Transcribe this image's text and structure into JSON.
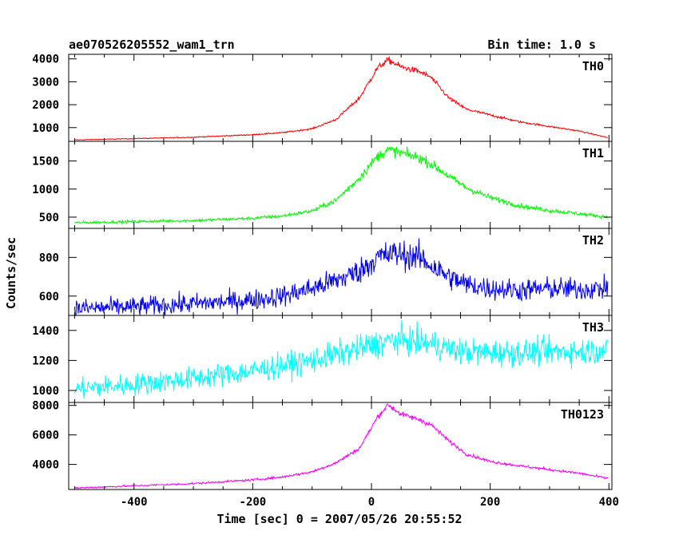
{
  "header": {
    "title": "ae070526205552_wam1_trn",
    "bin_time": "Bin time: 1.0 s"
  },
  "chart_data": {
    "type": "line",
    "xlabel": "Time [sec] 0 = 2007/05/26 20:55:52",
    "ylabel": "Counts/sec",
    "xlim": [
      -510,
      405
    ],
    "xticks": [
      -400,
      -200,
      0,
      200,
      400
    ],
    "panels": [
      {
        "name": "TH0",
        "color": "#ff0000",
        "ylim": [
          400,
          4200
        ],
        "yticks": [
          1000,
          2000,
          3000,
          4000
        ],
        "noise": 0.018,
        "shape": [
          [
            -500,
            460
          ],
          [
            -400,
            520
          ],
          [
            -300,
            580
          ],
          [
            -200,
            690
          ],
          [
            -150,
            780
          ],
          [
            -100,
            950
          ],
          [
            -60,
            1350
          ],
          [
            -20,
            2300
          ],
          [
            10,
            3600
          ],
          [
            28,
            3950
          ],
          [
            50,
            3650
          ],
          [
            80,
            3450
          ],
          [
            100,
            3200
          ],
          [
            130,
            2300
          ],
          [
            160,
            1800
          ],
          [
            200,
            1550
          ],
          [
            250,
            1250
          ],
          [
            300,
            1050
          ],
          [
            350,
            850
          ],
          [
            398,
            560
          ]
        ]
      },
      {
        "name": "TH1",
        "color": "#00ff00",
        "ylim": [
          300,
          1850
        ],
        "yticks": [
          500,
          1000,
          1500
        ],
        "noise": 0.03,
        "shape": [
          [
            -500,
            400
          ],
          [
            -400,
            420
          ],
          [
            -300,
            440
          ],
          [
            -200,
            480
          ],
          [
            -150,
            520
          ],
          [
            -100,
            610
          ],
          [
            -60,
            800
          ],
          [
            -20,
            1200
          ],
          [
            10,
            1580
          ],
          [
            28,
            1700
          ],
          [
            50,
            1640
          ],
          [
            80,
            1560
          ],
          [
            100,
            1450
          ],
          [
            130,
            1230
          ],
          [
            160,
            1020
          ],
          [
            200,
            850
          ],
          [
            250,
            700
          ],
          [
            300,
            620
          ],
          [
            350,
            560
          ],
          [
            398,
            500
          ]
        ]
      },
      {
        "name": "TH2",
        "color": "#0000ff",
        "ylim": [
          500,
          950
        ],
        "yticks": [
          600,
          800
        ],
        "noise": 0.045,
        "shape": [
          [
            -500,
            535
          ],
          [
            -400,
            545
          ],
          [
            -300,
            560
          ],
          [
            -200,
            580
          ],
          [
            -150,
            600
          ],
          [
            -100,
            640
          ],
          [
            -60,
            680
          ],
          [
            -20,
            730
          ],
          [
            10,
            800
          ],
          [
            40,
            820
          ],
          [
            80,
            800
          ],
          [
            100,
            760
          ],
          [
            130,
            700
          ],
          [
            160,
            660
          ],
          [
            200,
            640
          ],
          [
            250,
            630
          ],
          [
            300,
            640
          ],
          [
            350,
            635
          ],
          [
            398,
            640
          ]
        ]
      },
      {
        "name": "TH3",
        "color": "#00ffff",
        "ylim": [
          920,
          1500
        ],
        "yticks": [
          1000,
          1200,
          1400
        ],
        "noise": 0.035,
        "shape": [
          [
            -500,
            1010
          ],
          [
            -400,
            1040
          ],
          [
            -300,
            1080
          ],
          [
            -200,
            1130
          ],
          [
            -100,
            1200
          ],
          [
            -50,
            1250
          ],
          [
            0,
            1300
          ],
          [
            40,
            1340
          ],
          [
            100,
            1310
          ],
          [
            150,
            1260
          ],
          [
            200,
            1250
          ],
          [
            250,
            1250
          ],
          [
            300,
            1260
          ],
          [
            350,
            1260
          ],
          [
            398,
            1270
          ]
        ]
      },
      {
        "name": "TH0123",
        "color": "#ff00ff",
        "ylim": [
          2300,
          8200
        ],
        "yticks": [
          4000,
          6000,
          8000
        ],
        "noise": 0.012,
        "shape": [
          [
            -500,
            2400
          ],
          [
            -400,
            2550
          ],
          [
            -300,
            2700
          ],
          [
            -200,
            2950
          ],
          [
            -150,
            3150
          ],
          [
            -100,
            3500
          ],
          [
            -60,
            4100
          ],
          [
            -20,
            5100
          ],
          [
            10,
            7200
          ],
          [
            28,
            8050
          ],
          [
            50,
            7400
          ],
          [
            80,
            7050
          ],
          [
            100,
            6700
          ],
          [
            130,
            5600
          ],
          [
            160,
            4700
          ],
          [
            200,
            4200
          ],
          [
            250,
            3900
          ],
          [
            300,
            3650
          ],
          [
            350,
            3400
          ],
          [
            398,
            3050
          ]
        ]
      }
    ]
  }
}
